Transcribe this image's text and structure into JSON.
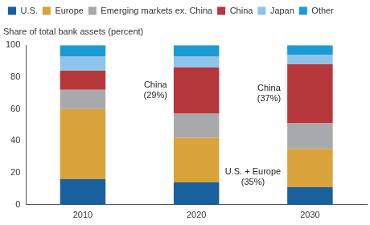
{
  "chart_data": {
    "type": "bar",
    "stacked": true,
    "ylabel": "Share of total bank assets (percent)",
    "categories": [
      "2010",
      "2020",
      "2030"
    ],
    "series": [
      {
        "name": "U.S.",
        "color": "#1a5f9e",
        "values": [
          16,
          14,
          11
        ]
      },
      {
        "name": "Europe",
        "color": "#d9a23a",
        "values": [
          44,
          28,
          24
        ]
      },
      {
        "name": "Emerging markets ex. China",
        "color": "#a8a9ad",
        "values": [
          12,
          15,
          16
        ]
      },
      {
        "name": "China",
        "color": "#b5373a",
        "values": [
          12,
          29,
          37
        ]
      },
      {
        "name": "Japan",
        "color": "#8ec3ea",
        "values": [
          9,
          7,
          6
        ]
      },
      {
        "name": "Other",
        "color": "#1b9ad6",
        "values": [
          7,
          7,
          6
        ]
      }
    ],
    "ylim": [
      0,
      100
    ],
    "yticks": [
      0,
      20,
      40,
      60,
      80,
      100
    ],
    "grid": false,
    "legend": "top-left",
    "annotations": [
      {
        "text": [
          "China",
          "(29%)"
        ],
        "category": "2020",
        "series": [
          "China"
        ]
      },
      {
        "text": [
          "China",
          "(37%)"
        ],
        "category": "2030",
        "series": [
          "China"
        ]
      },
      {
        "text": [
          "U.S. + Europe",
          "(35%)"
        ],
        "category": "2030",
        "series": [
          "U.S.",
          "Europe"
        ]
      }
    ]
  }
}
